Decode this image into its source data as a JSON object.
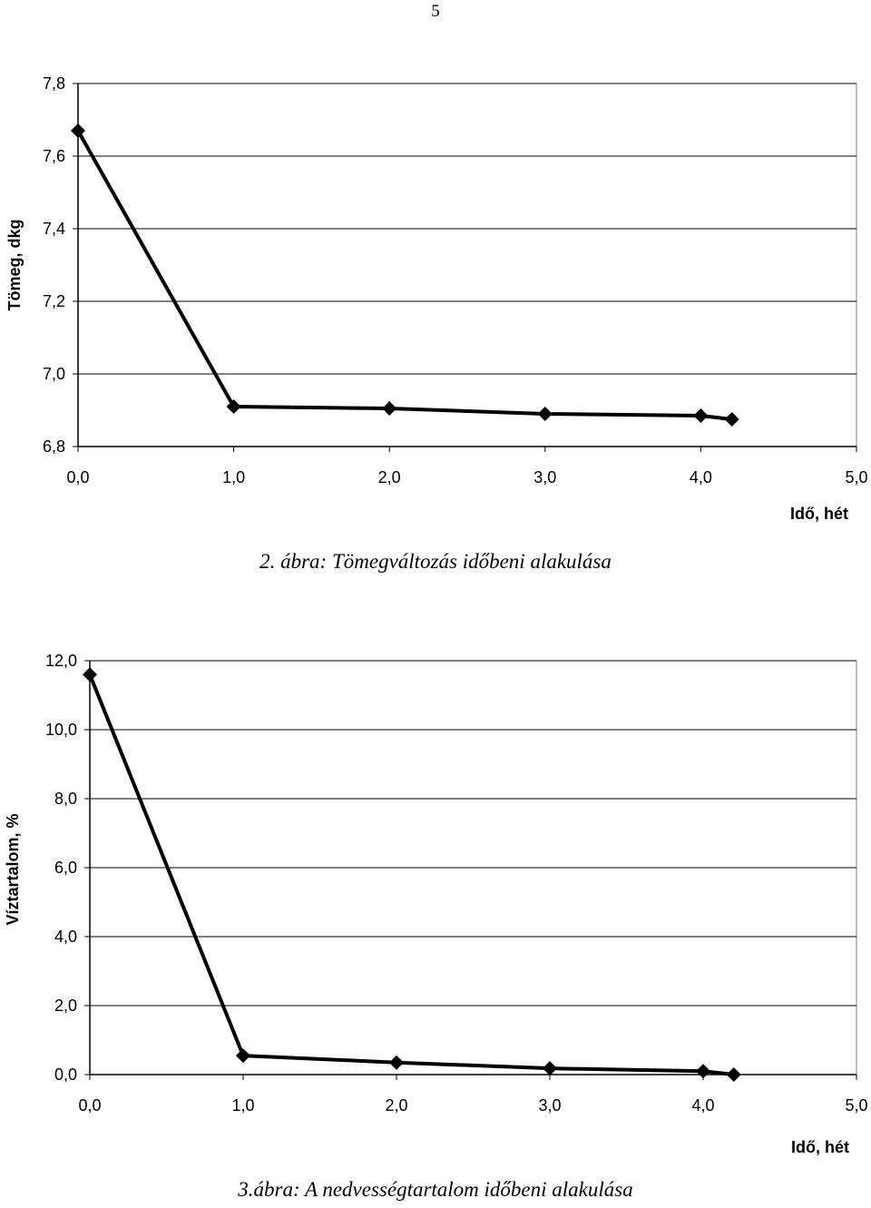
{
  "page_number": "5",
  "chart_data": [
    {
      "type": "line",
      "caption": "2. ábra: Tömegváltozás időbeni alakulása",
      "xlabel": "Idő, hét",
      "ylabel": "Tömeg, dkg",
      "xlim": [
        0,
        5
      ],
      "ylim": [
        6.8,
        7.8
      ],
      "x_ticks": [
        "0,0",
        "1,0",
        "2,0",
        "3,0",
        "4,0",
        "5,0"
      ],
      "y_ticks": [
        "6,8",
        "7,0",
        "7,2",
        "7,4",
        "7,6",
        "7,8"
      ],
      "grid": true,
      "marker": "diamond",
      "color": "#000000",
      "series": [
        {
          "x": [
            0.0,
            1.0,
            2.0,
            3.0,
            4.0,
            4.2
          ],
          "y": [
            7.67,
            6.91,
            6.905,
            6.89,
            6.885,
            6.875
          ]
        }
      ]
    },
    {
      "type": "line",
      "caption": "3.ábra: A nedvességtartalom időbeni alakulása",
      "xlabel": "Idő, hét",
      "ylabel": "Víztartalom, %",
      "xlim": [
        0,
        5
      ],
      "ylim": [
        0,
        12
      ],
      "x_ticks": [
        "0,0",
        "1,0",
        "2,0",
        "3,0",
        "4,0",
        "5,0"
      ],
      "y_ticks": [
        "0,0",
        "2,0",
        "4,0",
        "6,0",
        "8,0",
        "10,0",
        "12,0"
      ],
      "grid": true,
      "marker": "diamond",
      "color": "#000000",
      "series": [
        {
          "x": [
            0.0,
            1.0,
            2.0,
            3.0,
            4.0,
            4.2
          ],
          "y": [
            11.6,
            0.55,
            0.35,
            0.18,
            0.1,
            0.0
          ]
        }
      ]
    }
  ]
}
